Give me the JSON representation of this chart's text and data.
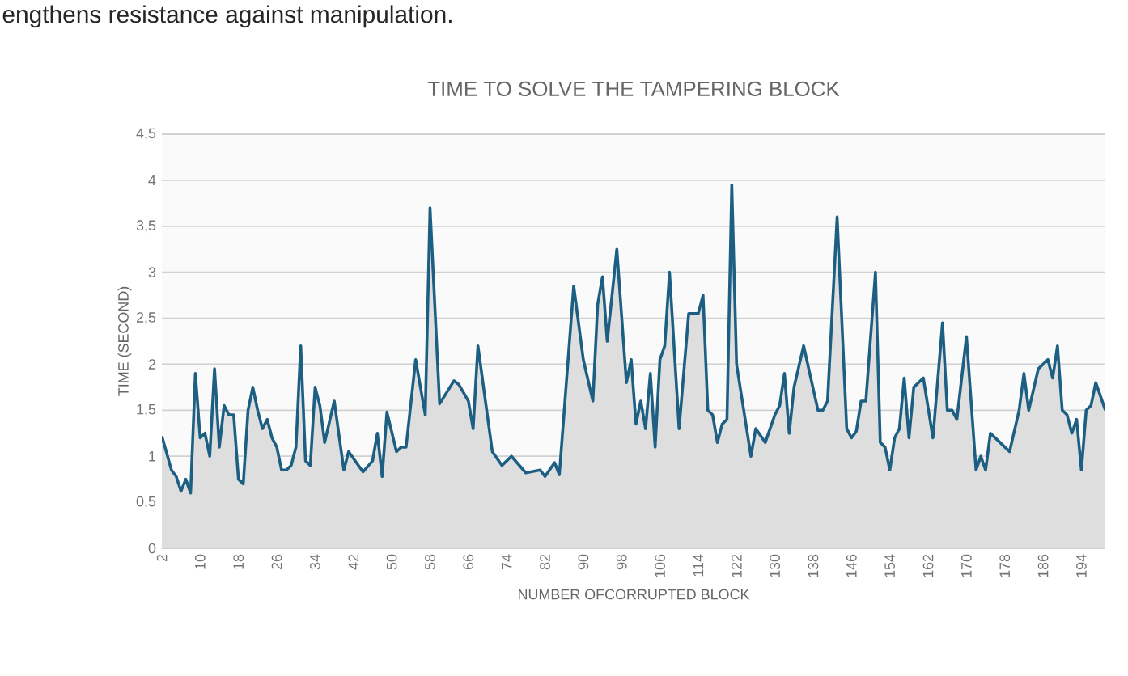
{
  "chart_data": {
    "type": "area",
    "title": "TIME TO SOLVE THE TAMPERING BLOCK",
    "xlabel": "NUMBER OFCORRUPTED BLOCK",
    "ylabel": "TIME (SECOND)",
    "annotations": [
      "engthens resistance against manipulation."
    ],
    "grid": "y",
    "xlim": [
      2,
      199
    ],
    "xticks": [
      2,
      10,
      18,
      26,
      34,
      42,
      50,
      58,
      66,
      74,
      82,
      90,
      98,
      106,
      114,
      122,
      130,
      138,
      146,
      154,
      162,
      170,
      178,
      186,
      194
    ],
    "ylim": [
      0,
      4.5
    ],
    "yticks": [
      0,
      {
        "value": 0.5,
        "label": "0,5"
      },
      1,
      {
        "value": 1.5,
        "label": "1,5"
      },
      2,
      {
        "value": 2.5,
        "label": "2,5"
      },
      3,
      {
        "value": 3.5,
        "label": "3,5"
      },
      4,
      {
        "value": 4.5,
        "label": "4,5"
      }
    ],
    "series": [
      {
        "color": "#1c5f82",
        "x": [
          2,
          4,
          5,
          6,
          7,
          8,
          9,
          10,
          11,
          12,
          13,
          14,
          15,
          16,
          17,
          18,
          19,
          20,
          21,
          22,
          23,
          24,
          25,
          26,
          27,
          28,
          29,
          30,
          31,
          32,
          33,
          34,
          35,
          36,
          38,
          40,
          41,
          44,
          46,
          47,
          48,
          49,
          51,
          52,
          53,
          55,
          57,
          58,
          60,
          63,
          64,
          66,
          67,
          68,
          71,
          73,
          75,
          78,
          81,
          82,
          84,
          85,
          88,
          90,
          92,
          93,
          94,
          95,
          97,
          99,
          100,
          101,
          102,
          103,
          104,
          105,
          106,
          107,
          108,
          110,
          112,
          114,
          115,
          116,
          117,
          118,
          119,
          120,
          121,
          122,
          125,
          126,
          128,
          130,
          131,
          132,
          133,
          134,
          136,
          139,
          140,
          141,
          143,
          145,
          146,
          147,
          148,
          149,
          151,
          152,
          153,
          154,
          155,
          156,
          157,
          158,
          159,
          161,
          163,
          165,
          166,
          167,
          168,
          170,
          172,
          173,
          174,
          175,
          177,
          179,
          181,
          182,
          183,
          185,
          187,
          188,
          189,
          190,
          191,
          192,
          193,
          194,
          195,
          196,
          197,
          199
        ],
        "values": [
          1.22,
          0.85,
          0.78,
          0.62,
          0.75,
          0.6,
          1.9,
          1.2,
          1.25,
          1.0,
          1.95,
          1.1,
          1.55,
          1.45,
          1.45,
          0.75,
          0.7,
          1.5,
          1.75,
          1.5,
          1.3,
          1.4,
          1.2,
          1.1,
          0.85,
          0.85,
          0.9,
          1.1,
          2.2,
          0.95,
          0.9,
          1.75,
          1.55,
          1.15,
          1.6,
          0.85,
          1.05,
          0.83,
          0.95,
          1.25,
          0.78,
          1.48,
          1.05,
          1.1,
          1.1,
          2.05,
          1.45,
          3.7,
          1.57,
          1.82,
          1.78,
          1.6,
          1.3,
          2.2,
          1.05,
          0.9,
          1.0,
          0.82,
          0.85,
          0.78,
          0.93,
          0.8,
          2.85,
          2.05,
          1.6,
          2.65,
          2.95,
          2.25,
          3.25,
          1.8,
          2.05,
          1.35,
          1.6,
          1.3,
          1.9,
          1.1,
          2.05,
          2.2,
          3.0,
          1.3,
          2.55,
          2.55,
          2.75,
          1.5,
          1.45,
          1.15,
          1.35,
          1.4,
          3.95,
          2.0,
          1.0,
          1.3,
          1.15,
          1.45,
          1.55,
          1.9,
          1.25,
          1.75,
          2.2,
          1.5,
          1.5,
          1.6,
          3.6,
          1.3,
          1.2,
          1.27,
          1.6,
          1.6,
          3.0,
          1.15,
          1.1,
          0.85,
          1.2,
          1.3,
          1.85,
          1.2,
          1.75,
          1.85,
          1.2,
          2.45,
          1.5,
          1.5,
          1.4,
          2.3,
          0.85,
          1.0,
          0.85,
          1.25,
          1.15,
          1.05,
          1.5,
          1.9,
          1.5,
          1.95,
          2.05,
          1.85,
          2.2,
          1.5,
          1.45,
          1.25,
          1.4,
          0.85,
          1.5,
          1.55,
          1.8,
          1.5
        ]
      }
    ]
  }
}
